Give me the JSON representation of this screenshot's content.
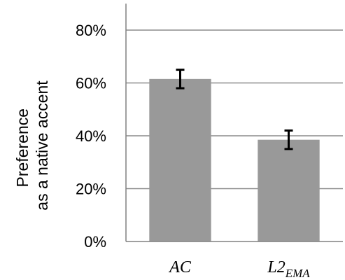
{
  "chart_data": {
    "type": "bar",
    "categories": [
      {
        "main": "AC",
        "sub": ""
      },
      {
        "main": "L2",
        "sub": "EMA"
      }
    ],
    "values": [
      0.615,
      0.385
    ],
    "error_low": [
      0.58,
      0.35
    ],
    "error_high": [
      0.65,
      0.42
    ],
    "ylabel_lines": [
      "Preference",
      "as a native accent"
    ],
    "yticks": [
      {
        "value": 0.0,
        "label": "0%"
      },
      {
        "value": 0.2,
        "label": "20%"
      },
      {
        "value": 0.4,
        "label": "40%"
      },
      {
        "value": 0.6,
        "label": "60%"
      },
      {
        "value": 0.8,
        "label": "80%"
      }
    ],
    "ylim": [
      0,
      0.9
    ],
    "grid": true,
    "legend": "none",
    "colors": {
      "bar": "#999999",
      "gridline": "#8c8c8c",
      "axis": "#808080",
      "errorbar": "#000000"
    }
  }
}
